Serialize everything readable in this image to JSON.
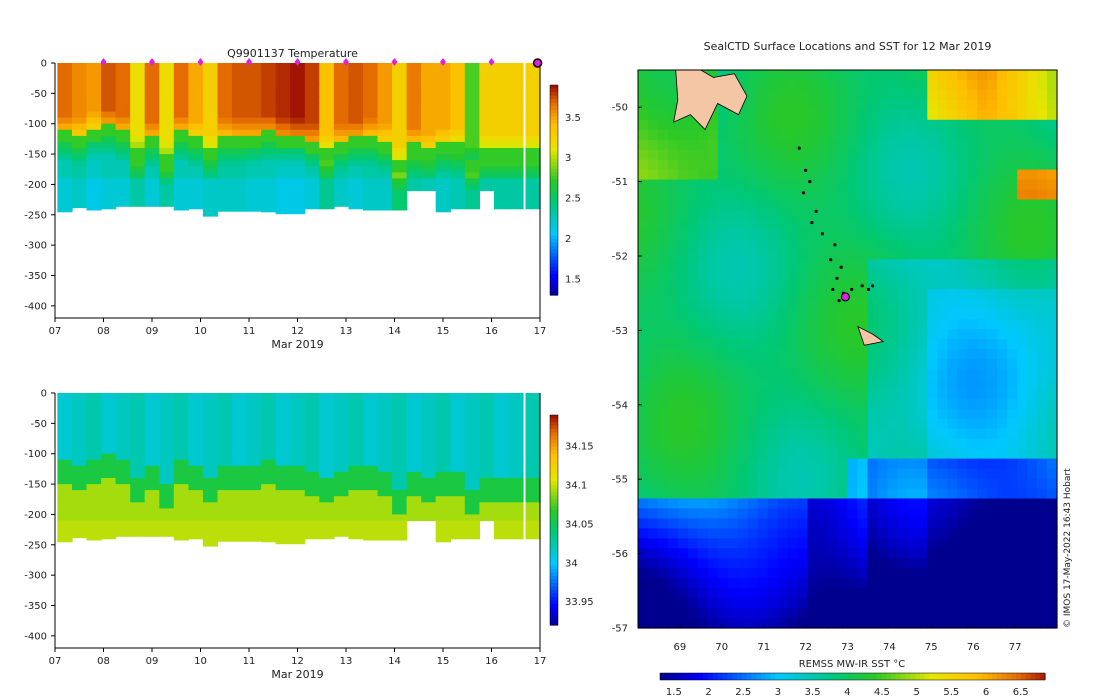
{
  "credit": "© IMOS 17-May-2022 16:43 Hobart",
  "chart_data": [
    {
      "type": "heatmap",
      "title": "Q9901137  Temperature",
      "xlabel": "Mar 2019",
      "ylabel": "",
      "x_ticks": [
        "07",
        "08",
        "09",
        "10",
        "11",
        "12",
        "13",
        "14",
        "15",
        "16",
        "17"
      ],
      "x_range_days": [
        7,
        17
      ],
      "y_ticks": [
        0,
        -50,
        -100,
        -150,
        -200,
        -250,
        -300,
        -350,
        -400
      ],
      "ylim": [
        -420,
        0
      ],
      "colorbar": {
        "ticks": [
          "1.5",
          "2",
          "2.5",
          "3",
          "3.5"
        ],
        "range": [
          1.3,
          3.9
        ]
      },
      "profile_markers_day": [
        8,
        9,
        10,
        11,
        12,
        13,
        14,
        15,
        16
      ],
      "profiles": [
        {
          "day": 7.2,
          "depth_max": -245,
          "surface": 3.7,
          "thermo": -110,
          "deep": 2.3
        },
        {
          "day": 7.5,
          "depth_max": -238,
          "surface": 3.6,
          "thermo": -115,
          "deep": 2.35
        },
        {
          "day": 7.8,
          "depth_max": -242,
          "surface": 3.55,
          "thermo": -105,
          "deep": 2.25
        },
        {
          "day": 8.1,
          "depth_max": -240,
          "surface": 3.75,
          "thermo": -100,
          "deep": 2.3
        },
        {
          "day": 8.4,
          "depth_max": -236,
          "surface": 3.7,
          "thermo": -110,
          "deep": 2.3
        },
        {
          "day": 8.7,
          "depth_max": -236,
          "surface": 3.2,
          "thermo": -140,
          "deep": 2.45
        },
        {
          "day": 9.0,
          "depth_max": -236,
          "surface": 3.7,
          "thermo": -120,
          "deep": 2.3
        },
        {
          "day": 9.3,
          "depth_max": -236,
          "surface": 3.2,
          "thermo": -150,
          "deep": 2.45
        },
        {
          "day": 9.6,
          "depth_max": -242,
          "surface": 3.7,
          "thermo": -110,
          "deep": 2.3
        },
        {
          "day": 9.9,
          "depth_max": -240,
          "surface": 3.5,
          "thermo": -120,
          "deep": 2.3
        },
        {
          "day": 10.2,
          "depth_max": -252,
          "surface": 3.3,
          "thermo": -140,
          "deep": 2.35
        },
        {
          "day": 10.5,
          "depth_max": -244,
          "surface": 3.7,
          "thermo": -115,
          "deep": 2.35
        },
        {
          "day": 10.8,
          "depth_max": -244,
          "surface": 3.75,
          "thermo": -115,
          "deep": 2.35
        },
        {
          "day": 11.1,
          "depth_max": -244,
          "surface": 3.75,
          "thermo": -115,
          "deep": 2.3
        },
        {
          "day": 11.4,
          "depth_max": -245,
          "surface": 3.8,
          "thermo": -110,
          "deep": 2.3
        },
        {
          "day": 11.7,
          "depth_max": -248,
          "surface": 3.85,
          "thermo": -115,
          "deep": 2.25
        },
        {
          "day": 12.0,
          "depth_max": -248,
          "surface": 3.9,
          "thermo": -115,
          "deep": 2.25
        },
        {
          "day": 12.3,
          "depth_max": -240,
          "surface": 3.8,
          "thermo": -125,
          "deep": 2.3
        },
        {
          "day": 12.6,
          "depth_max": -240,
          "surface": 3.4,
          "thermo": -140,
          "deep": 2.5
        },
        {
          "day": 12.9,
          "depth_max": -236,
          "surface": 3.7,
          "thermo": -125,
          "deep": 2.35
        },
        {
          "day": 13.2,
          "depth_max": -240,
          "surface": 3.75,
          "thermo": -120,
          "deep": 2.3
        },
        {
          "day": 13.5,
          "depth_max": -242,
          "surface": 3.7,
          "thermo": -115,
          "deep": 2.35
        },
        {
          "day": 13.8,
          "depth_max": -242,
          "surface": 3.55,
          "thermo": -125,
          "deep": 2.35
        },
        {
          "day": 14.1,
          "depth_max": -242,
          "surface": 3.3,
          "thermo": -160,
          "deep": 2.6
        },
        {
          "day": 14.4,
          "depth_max": -210,
          "surface": 3.65,
          "thermo": -130,
          "deep": 2.45
        },
        {
          "day": 14.7,
          "depth_max": -210,
          "surface": 3.5,
          "thermo": -140,
          "deep": 2.4
        },
        {
          "day": 15.0,
          "depth_max": -245,
          "surface": 3.5,
          "thermo": -130,
          "deep": 2.35
        },
        {
          "day": 15.3,
          "depth_max": -240,
          "surface": 3.4,
          "thermo": -130,
          "deep": 2.4
        },
        {
          "day": 15.6,
          "depth_max": -240,
          "surface": 2.8,
          "thermo": -160,
          "deep": 2.5
        },
        {
          "day": 15.9,
          "depth_max": -210,
          "surface": 3.3,
          "thermo": -140,
          "deep": 2.45
        },
        {
          "day": 16.2,
          "depth_max": -240,
          "surface": 3.3,
          "thermo": -140,
          "deep": 2.45
        },
        {
          "day": 16.5,
          "depth_max": -240,
          "surface": 3.3,
          "thermo": -140,
          "deep": 2.45
        },
        {
          "day": 16.85,
          "depth_max": -240,
          "surface": 3.3,
          "thermo": -140,
          "deep": 2.45
        }
      ]
    },
    {
      "type": "heatmap",
      "title": "",
      "xlabel": "Mar 2019",
      "ylabel": "",
      "x_ticks": [
        "07",
        "08",
        "09",
        "10",
        "11",
        "12",
        "13",
        "14",
        "15",
        "16",
        "17"
      ],
      "x_range_days": [
        7,
        17
      ],
      "y_ticks": [
        0,
        -50,
        -100,
        -150,
        -200,
        -250,
        -300,
        -350,
        -400
      ],
      "ylim": [
        -420,
        0
      ],
      "colorbar": {
        "ticks": [
          "33.95",
          "34",
          "34.05",
          "34.1",
          "34.15"
        ],
        "range": [
          33.92,
          34.19
        ]
      },
      "surface_salinity": 34.02,
      "deep_salinity": 34.095,
      "profiles_use_same_days_and_depths_as_temperature": true
    },
    {
      "type": "heatmap",
      "title": "SealCTD Surface Locations and SST for 12 Mar 2019",
      "xlabel": "",
      "colorbar_label": "REMSS MW-IR SST °C",
      "x_ticks": [
        "69",
        "70",
        "71",
        "72",
        "73",
        "74",
        "75",
        "76",
        "77"
      ],
      "xlim": [
        68,
        78
      ],
      "y_ticks": [
        "-50",
        "-51",
        "-52",
        "-53",
        "-54",
        "-55",
        "-56",
        "-57"
      ],
      "ylim": [
        -57,
        -49.5
      ],
      "colorbar": {
        "ticks": [
          "1.5",
          "2",
          "2.5",
          "3",
          "3.5",
          "4",
          "4.5",
          "5",
          "5.5",
          "6",
          "6.5"
        ],
        "range": [
          1.3,
          6.85
        ]
      },
      "current_position": {
        "lon": 72.95,
        "lat": -52.55
      },
      "track": [
        {
          "lon": 71.85,
          "lat": -50.55
        },
        {
          "lon": 72.0,
          "lat": -50.85
        },
        {
          "lon": 72.1,
          "lat": -51.0
        },
        {
          "lon": 71.95,
          "lat": -51.15
        },
        {
          "lon": 72.25,
          "lat": -51.4
        },
        {
          "lon": 72.15,
          "lat": -51.55
        },
        {
          "lon": 72.4,
          "lat": -51.7
        },
        {
          "lon": 72.7,
          "lat": -51.85
        },
        {
          "lon": 72.6,
          "lat": -52.05
        },
        {
          "lon": 72.85,
          "lat": -52.15
        },
        {
          "lon": 72.75,
          "lat": -52.3
        },
        {
          "lon": 72.65,
          "lat": -52.45
        },
        {
          "lon": 72.8,
          "lat": -52.6
        },
        {
          "lon": 72.9,
          "lat": -52.5
        },
        {
          "lon": 73.1,
          "lat": -52.45
        },
        {
          "lon": 73.35,
          "lat": -52.4
        },
        {
          "lon": 73.5,
          "lat": -52.45
        },
        {
          "lon": 73.6,
          "lat": -52.4
        }
      ]
    }
  ]
}
